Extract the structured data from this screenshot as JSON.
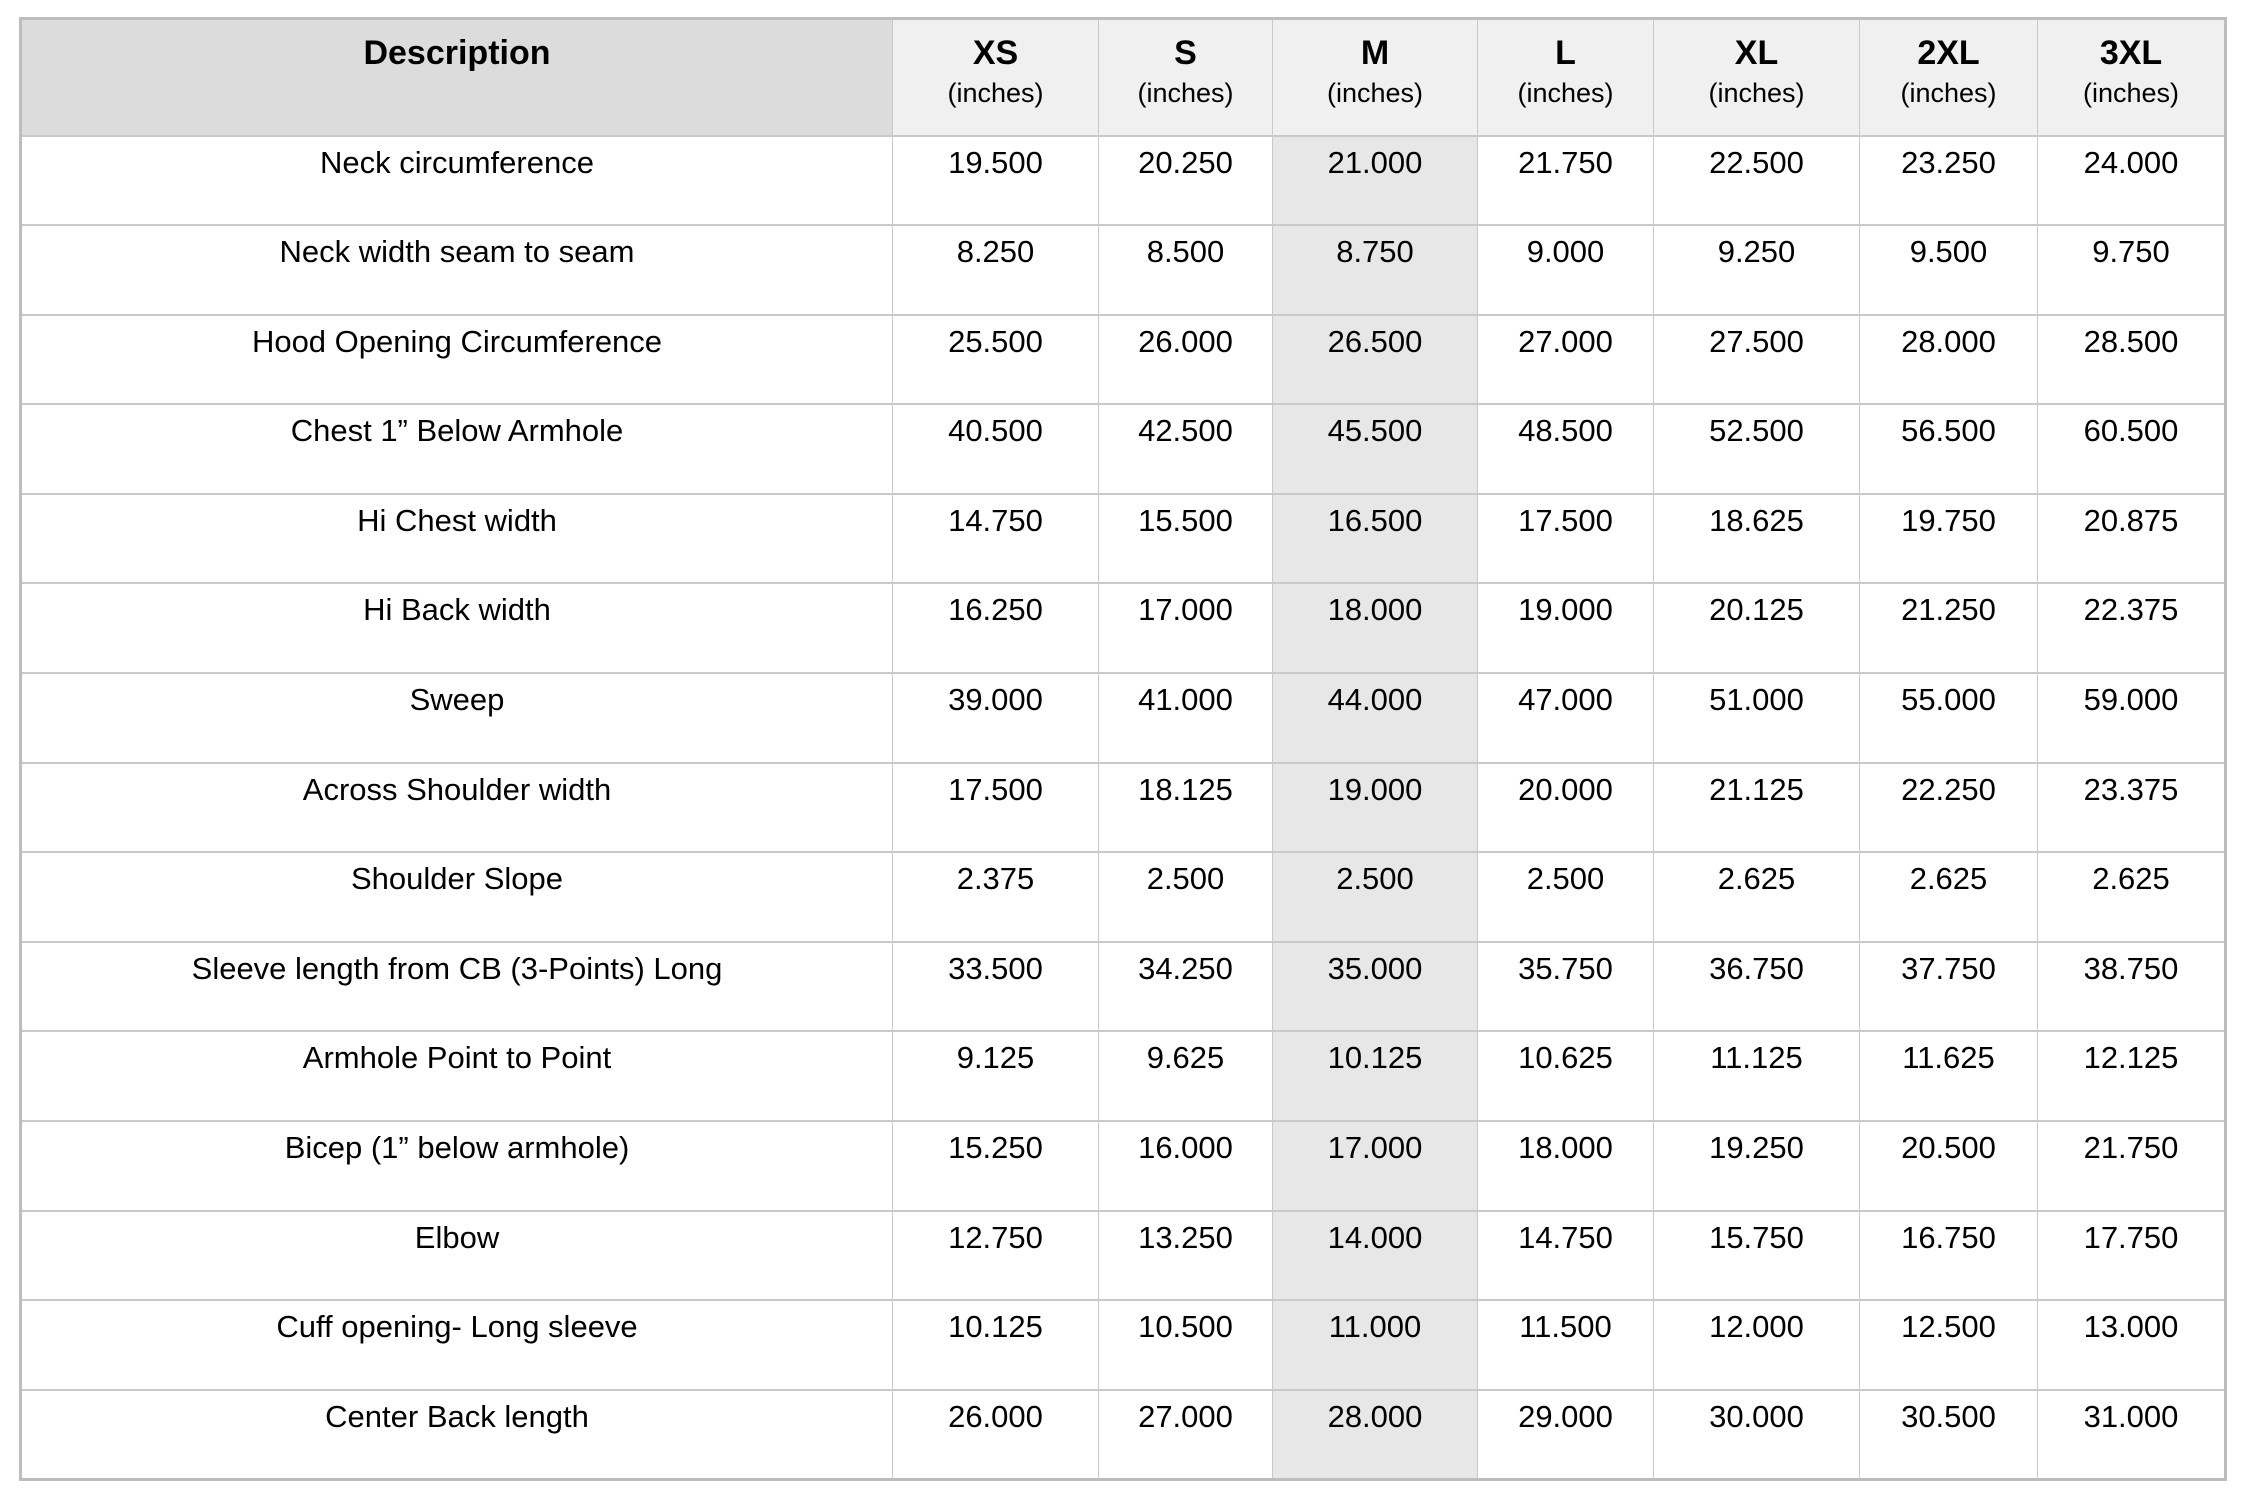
{
  "table": {
    "header": {
      "description": "Description",
      "unit": "(inches)",
      "sizes": [
        "XS",
        "S",
        "M",
        "L",
        "XL",
        "2XL",
        "3XL"
      ]
    },
    "highlight_size": "M",
    "rows": [
      {
        "label": "Neck circumference",
        "values": [
          "19.500",
          "20.250",
          "21.000",
          "21.750",
          "22.500",
          "23.250",
          "24.000"
        ]
      },
      {
        "label": "Neck width seam to seam",
        "values": [
          "8.250",
          "8.500",
          "8.750",
          "9.000",
          "9.250",
          "9.500",
          "9.750"
        ]
      },
      {
        "label": "Hood Opening Circumference",
        "values": [
          "25.500",
          "26.000",
          "26.500",
          "27.000",
          "27.500",
          "28.000",
          "28.500"
        ]
      },
      {
        "label": "Chest 1” Below Armhole",
        "values": [
          "40.500",
          "42.500",
          "45.500",
          "48.500",
          "52.500",
          "56.500",
          "60.500"
        ]
      },
      {
        "label": "Hi Chest width",
        "values": [
          "14.750",
          "15.500",
          "16.500",
          "17.500",
          "18.625",
          "19.750",
          "20.875"
        ]
      },
      {
        "label": "Hi Back width",
        "values": [
          "16.250",
          "17.000",
          "18.000",
          "19.000",
          "20.125",
          "21.250",
          "22.375"
        ]
      },
      {
        "label": "Sweep",
        "values": [
          "39.000",
          "41.000",
          "44.000",
          "47.000",
          "51.000",
          "55.000",
          "59.000"
        ]
      },
      {
        "label": "Across Shoulder width",
        "values": [
          "17.500",
          "18.125",
          "19.000",
          "20.000",
          "21.125",
          "22.250",
          "23.375"
        ]
      },
      {
        "label": "Shoulder Slope",
        "values": [
          "2.375",
          "2.500",
          "2.500",
          "2.500",
          "2.625",
          "2.625",
          "2.625"
        ]
      },
      {
        "label": "Sleeve length from CB (3-Points) Long",
        "values": [
          "33.500",
          "34.250",
          "35.000",
          "35.750",
          "36.750",
          "37.750",
          "38.750"
        ]
      },
      {
        "label": "Armhole Point to Point",
        "values": [
          "9.125",
          "9.625",
          "10.125",
          "10.625",
          "11.125",
          "11.625",
          "12.125"
        ]
      },
      {
        "label": "Bicep (1” below armhole)",
        "values": [
          "15.250",
          "16.000",
          "17.000",
          "18.000",
          "19.250",
          "20.500",
          "21.750"
        ]
      },
      {
        "label": "Elbow",
        "values": [
          "12.750",
          "13.250",
          "14.000",
          "14.750",
          "15.750",
          "16.750",
          "17.750"
        ]
      },
      {
        "label": "Cuff opening- Long sleeve",
        "values": [
          "10.125",
          "10.500",
          "11.000",
          "11.500",
          "12.000",
          "12.500",
          "13.000"
        ]
      },
      {
        "label": "Center Back length",
        "values": [
          "26.000",
          "27.000",
          "28.000",
          "29.000",
          "30.000",
          "30.500",
          "31.000"
        ]
      }
    ]
  },
  "colors": {
    "header_description_bg": "#dcdcdc",
    "header_size_bg": "#f0f0f0",
    "highlight_column_bg": "#e7e7e7",
    "border": "#c9c9c9",
    "text": "#000000"
  }
}
